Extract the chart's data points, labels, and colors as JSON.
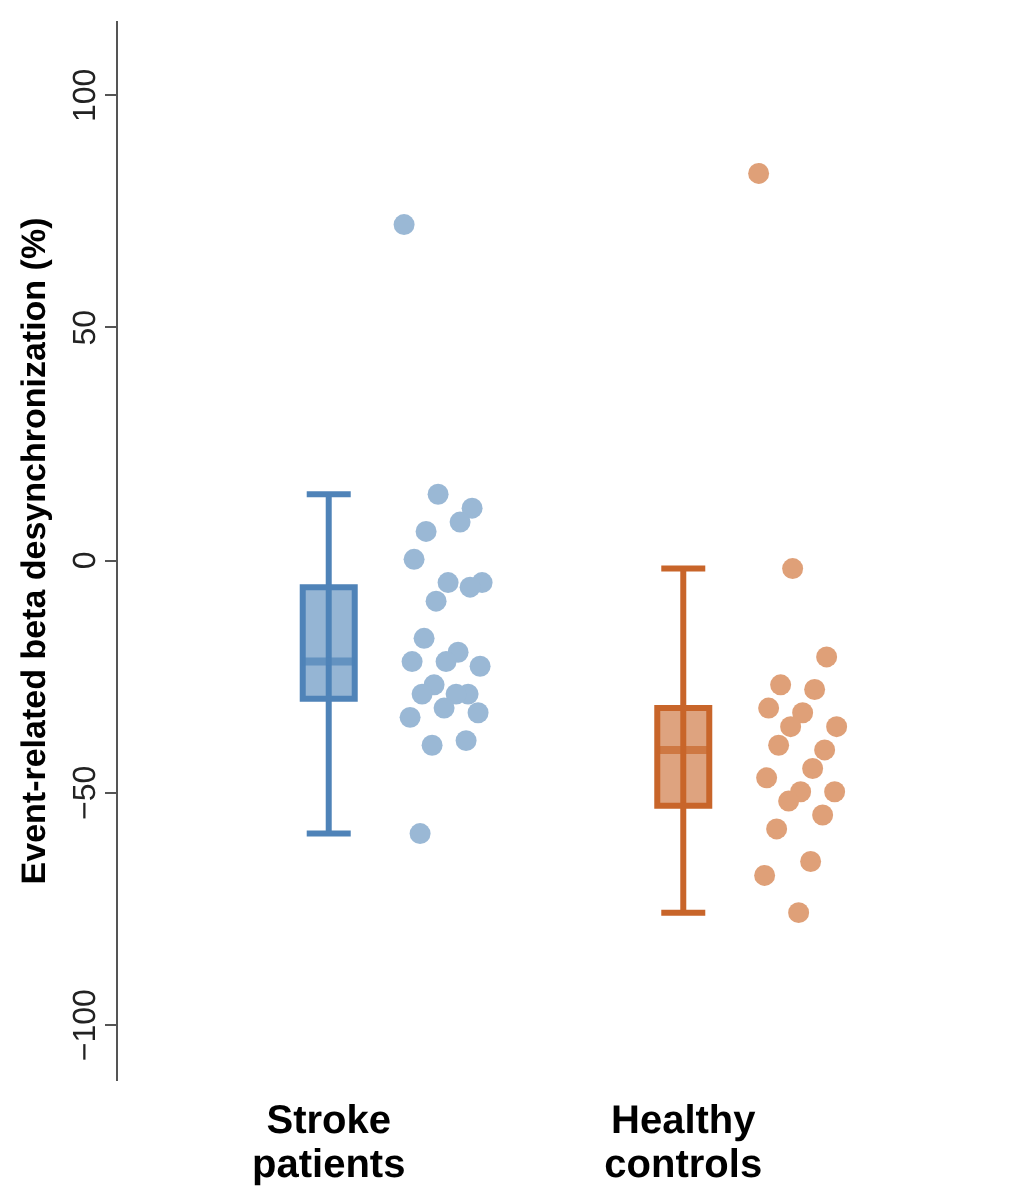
{
  "chart_data": {
    "type": "box",
    "ylabel": "Event-related beta desynchronization (%)",
    "categories": [
      "Stroke patients",
      "Healthy controls"
    ],
    "colors": [
      "#4f83b8",
      "#c8652a"
    ],
    "boxes": [
      {
        "low": -59,
        "q1": -30,
        "median": -22,
        "q3": -6,
        "high": 14
      },
      {
        "low": -76,
        "q1": -53,
        "median": -41,
        "q3": -32,
        "high": -2
      }
    ],
    "ylim": [
      -112,
      116
    ],
    "yticks": [
      -100,
      -50,
      0,
      50,
      100
    ],
    "grid": false,
    "series": [
      {
        "type": "scatter",
        "color": "#9ab8d5",
        "x": [
          "Stroke patients",
          "Stroke patients",
          "Stroke patients",
          "Stroke patients",
          "Stroke patients",
          "Stroke patients",
          "Stroke patients",
          "Stroke patients",
          "Stroke patients",
          "Stroke patients",
          "Stroke patients",
          "Stroke patients",
          "Stroke patients",
          "Stroke patients",
          "Stroke patients",
          "Stroke patients",
          "Stroke patients",
          "Stroke patients",
          "Stroke patients",
          "Stroke patients",
          "Stroke patients",
          "Stroke patients",
          "Stroke patients",
          "Stroke patients",
          "Stroke patients"
        ],
        "values": [
          72,
          14,
          11,
          6,
          8,
          0,
          -5,
          -5,
          -9,
          -6,
          -17,
          -20,
          -22,
          -22,
          -23,
          -27,
          -29,
          -29,
          -29,
          -34,
          -32,
          -33,
          -40,
          -39,
          -59
        ]
      },
      {
        "type": "scatter",
        "color": "#dfa078",
        "x": [
          "Healthy controls",
          "Healthy controls",
          "Healthy controls",
          "Healthy controls",
          "Healthy controls",
          "Healthy controls",
          "Healthy controls",
          "Healthy controls",
          "Healthy controls",
          "Healthy controls",
          "Healthy controls",
          "Healthy controls",
          "Healthy controls",
          "Healthy controls",
          "Healthy controls",
          "Healthy controls",
          "Healthy controls",
          "Healthy controls",
          "Healthy controls",
          "Healthy controls",
          "Healthy controls"
        ],
        "values": [
          83,
          -2,
          -21,
          -27,
          -28,
          -32,
          -33,
          -36,
          -36,
          -41,
          -40,
          -45,
          -47,
          -50,
          -50,
          -52,
          -55,
          -58,
          -65,
          -68,
          -76
        ]
      }
    ]
  }
}
